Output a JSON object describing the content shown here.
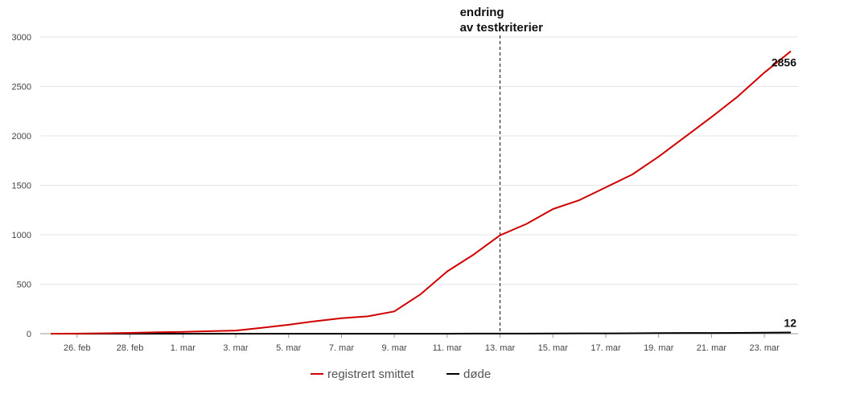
{
  "chart_data": {
    "type": "line",
    "title": "",
    "xlabel": "",
    "ylabel": "",
    "ylim": [
      0,
      3000
    ],
    "y_ticks": [
      0,
      500,
      1000,
      1500,
      2000,
      2500,
      3000
    ],
    "x_categories": [
      "25. feb",
      "26. feb",
      "27. feb",
      "28. feb",
      "29. feb",
      "1. mar",
      "2. mar",
      "3. mar",
      "4. mar",
      "5. mar",
      "6. mar",
      "7. mar",
      "8. mar",
      "9. mar",
      "10. mar",
      "11. mar",
      "12. mar",
      "13. mar",
      "14. mar",
      "15. mar",
      "16. mar",
      "17. mar",
      "18. mar",
      "19. mar",
      "20. mar",
      "21. mar",
      "22. mar",
      "23. mar",
      "24. mar"
    ],
    "x_tick_labels": [
      "26. feb",
      "28. feb",
      "1. mar",
      "3. mar",
      "5. mar",
      "7. mar",
      "9. mar",
      "11. mar",
      "13. mar",
      "15. mar",
      "17. mar",
      "19. mar",
      "21. mar",
      "23. mar"
    ],
    "grid": true,
    "legend_position": "bottom-center",
    "series": [
      {
        "name": "registrert smittet",
        "color": "#d00000",
        "values": [
          0,
          1,
          4,
          8,
          15,
          19,
          25,
          32,
          60,
          90,
          126,
          156,
          176,
          225,
          400,
          630,
          800,
          995,
          1110,
          1260,
          1350,
          1480,
          1610,
          1790,
          1990,
          2190,
          2400,
          2640,
          2856
        ]
      },
      {
        "name": "døde",
        "color": "#000000",
        "values": [
          0,
          0,
          0,
          0,
          0,
          0,
          0,
          0,
          0,
          0,
          0,
          0,
          0,
          0,
          0,
          0,
          1,
          1,
          1,
          2,
          3,
          3,
          4,
          6,
          7,
          7,
          8,
          10,
          12
        ]
      }
    ],
    "annotations": {
      "vline_category": "13. mar",
      "vline_text_line1": "endring",
      "vline_text_line2": "av testkriterier",
      "end_label_1": "2856",
      "end_label_2": "12"
    }
  }
}
